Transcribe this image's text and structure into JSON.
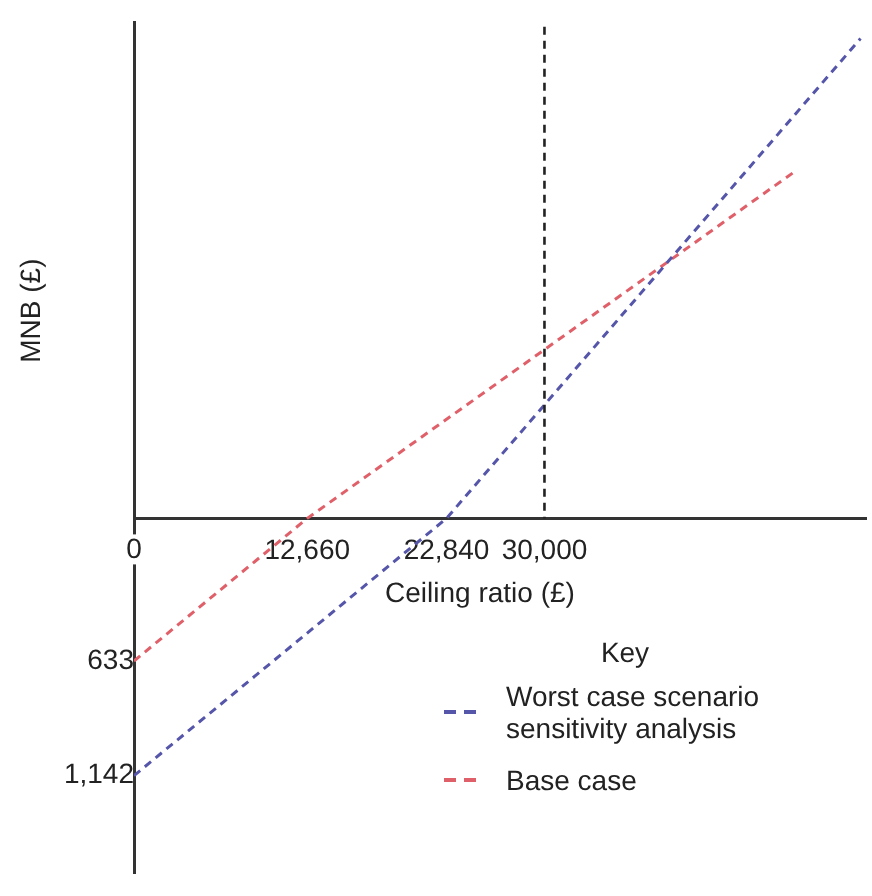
{
  "chart_data": {
    "type": "line",
    "xlabel": "Ceiling ratio (£)",
    "ylabel": "MNB (£)",
    "legend_title": "Key",
    "xlim": [
      0,
      53500
    ],
    "xticks": [
      0,
      {
        "value": 12660,
        "label": "12,660"
      },
      {
        "value": 22840,
        "label": "22,840"
      },
      {
        "value": 30000,
        "label": "30,000"
      }
    ],
    "ylim": [
      -1575,
      2200
    ],
    "yticks": [
      {
        "value": -633,
        "label": "633"
      },
      {
        "value": -1142,
        "label": "1,142"
      }
    ],
    "series": [
      {
        "name": "Worst case scenario sensitivity analysis",
        "color": "#5555aa",
        "x": [
          0,
          22840,
          53100
        ],
        "values": [
          -1142,
          0,
          2130
        ]
      },
      {
        "name": "Base case",
        "color": "#e0606a",
        "x": [
          0,
          12660,
          48300
        ],
        "values": [
          -633,
          0,
          1540
        ]
      }
    ],
    "ref_lines": [
      {
        "axis": "x",
        "value": 30000,
        "color": "#222222",
        "line_style": "dashed"
      }
    ],
    "grid": false,
    "legend": "bottom right",
    "marker": "none",
    "line_style": "dashed"
  }
}
